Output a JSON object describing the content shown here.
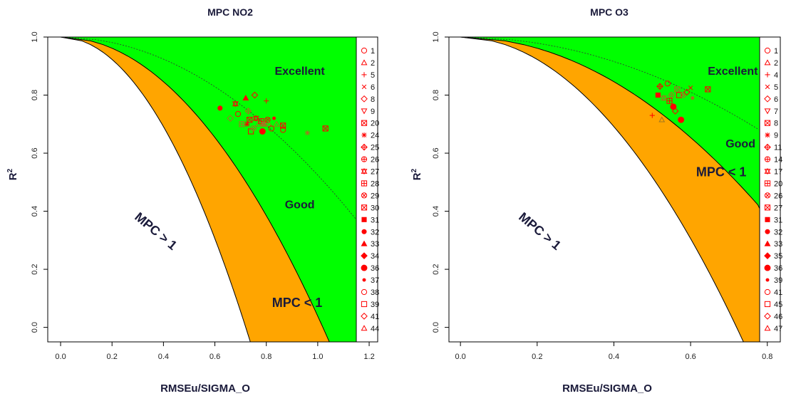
{
  "colors": {
    "good": "#00ff00",
    "mpc_lt_1": "#ffa500",
    "marker": "#ff0000",
    "marker_alt": "#a07820",
    "frame": "#000000",
    "title_text": "#1a1a3a"
  },
  "chart_data": [
    {
      "type": "scatter",
      "title": "MPC NO2",
      "xlabel": "RMSEu/SIGMA_O",
      "ylabel": "R²",
      "ylabel_base": "R",
      "ylabel_sup": "2",
      "xlim": [
        -0.05,
        1.15
      ],
      "ylim": [
        -0.05,
        1.0
      ],
      "xticks": [
        "0.0",
        "0.2",
        "0.4",
        "0.6",
        "0.8",
        "1.0",
        "1.2"
      ],
      "xtick_values": [
        0.0,
        0.2,
        0.4,
        0.6,
        0.8,
        1.0,
        1.2
      ],
      "yticks": [
        "0.0",
        "0.2",
        "0.4",
        "0.6",
        "0.8",
        "1.0"
      ],
      "ytick_values": [
        0.0,
        0.2,
        0.4,
        0.6,
        0.8,
        1.0
      ],
      "region_labels": {
        "excellent": "Excellent",
        "good": "Good",
        "mpc_lt": "MPC < 1",
        "mpc_gt": "MPC > 1"
      },
      "region_label_pos": {
        "excellent": [
          0.93,
          0.87
        ],
        "good": [
          0.93,
          0.41
        ],
        "mpc_lt": [
          0.92,
          0.07
        ],
        "mpc_gt": [
          0.36,
          0.32
        ]
      },
      "region_label_rot": {
        "mpc_gt": 40
      },
      "legend_placement": "right",
      "legend": [
        "1",
        "2",
        "5",
        "6",
        "8",
        "9",
        "20",
        "24",
        "25",
        "26",
        "27",
        "28",
        "29",
        "30",
        "31",
        "32",
        "33",
        "34",
        "36",
        "37",
        "38",
        "39",
        "41",
        "44"
      ],
      "legend_symbols": [
        "circle",
        "triangle",
        "plus",
        "cross",
        "diamond",
        "triangle-down",
        "square-x",
        "asterisk",
        "diamond-plus",
        "circle-plus",
        "star6",
        "square-plus",
        "circle-x",
        "square-x",
        "filled-square",
        "filled-circle",
        "filled-triangle",
        "filled-diamond",
        "filled-circle-big",
        "filled-circle-small",
        "circle",
        "square",
        "diamond",
        "triangle"
      ],
      "points": [
        {
          "x": 0.62,
          "y": 0.755,
          "s": "filled-circle"
        },
        {
          "x": 0.66,
          "y": 0.72,
          "s": "diamond"
        },
        {
          "x": 0.68,
          "y": 0.77,
          "s": "star6"
        },
        {
          "x": 0.69,
          "y": 0.735,
          "s": "circle"
        },
        {
          "x": 0.705,
          "y": 0.7,
          "s": "square-plus"
        },
        {
          "x": 0.72,
          "y": 0.79,
          "s": "filled-triangle"
        },
        {
          "x": 0.725,
          "y": 0.7,
          "s": "asterisk"
        },
        {
          "x": 0.73,
          "y": 0.745,
          "s": "diamond-plus"
        },
        {
          "x": 0.735,
          "y": 0.715,
          "s": "square-x"
        },
        {
          "x": 0.74,
          "y": 0.675,
          "s": "square"
        },
        {
          "x": 0.75,
          "y": 0.685,
          "s": "circle-plus"
        },
        {
          "x": 0.755,
          "y": 0.8,
          "s": "diamond"
        },
        {
          "x": 0.76,
          "y": 0.72,
          "s": "star6"
        },
        {
          "x": 0.77,
          "y": 0.7,
          "s": "triangle"
        },
        {
          "x": 0.78,
          "y": 0.71,
          "s": "square-plus"
        },
        {
          "x": 0.785,
          "y": 0.675,
          "s": "filled-circle-big"
        },
        {
          "x": 0.79,
          "y": 0.7,
          "s": "filled-square"
        },
        {
          "x": 0.8,
          "y": 0.78,
          "s": "plus"
        },
        {
          "x": 0.805,
          "y": 0.715,
          "s": "circle-x"
        },
        {
          "x": 0.81,
          "y": 0.7,
          "s": "triangle"
        },
        {
          "x": 0.82,
          "y": 0.685,
          "s": "circle"
        },
        {
          "x": 0.83,
          "y": 0.72,
          "s": "filled-circle-small"
        },
        {
          "x": 0.84,
          "y": 0.7,
          "s": "triangle"
        },
        {
          "x": 0.865,
          "y": 0.68,
          "s": "circle"
        },
        {
          "x": 0.865,
          "y": 0.695,
          "s": "square-x"
        },
        {
          "x": 0.96,
          "y": 0.67,
          "s": "asterisk"
        },
        {
          "x": 1.03,
          "y": 0.685,
          "s": "square-x"
        }
      ]
    },
    {
      "type": "scatter",
      "title": "MPC O3",
      "xlabel": "RMSEu/SIGMA_O",
      "ylabel": "R²",
      "ylabel_base": "R",
      "ylabel_sup": "2",
      "xlim": [
        -0.03,
        0.78
      ],
      "ylim": [
        -0.05,
        1.0
      ],
      "xticks": [
        "0.0",
        "0.2",
        "0.4",
        "0.6",
        "0.8"
      ],
      "xtick_values": [
        0.0,
        0.2,
        0.4,
        0.6,
        0.8
      ],
      "yticks": [
        "0.0",
        "0.2",
        "0.4",
        "0.6",
        "0.8",
        "1.0"
      ],
      "ytick_values": [
        0.0,
        0.2,
        0.4,
        0.6,
        0.8,
        1.0
      ],
      "region_labels": {
        "excellent": "Excellent",
        "good": "Good",
        "mpc_lt": "MPC < 1",
        "mpc_gt": "MPC > 1"
      },
      "region_label_pos": {
        "excellent": [
          0.71,
          0.87
        ],
        "good": [
          0.73,
          0.62
        ],
        "mpc_lt": [
          0.68,
          0.52
        ],
        "mpc_gt": [
          0.2,
          0.32
        ]
      },
      "region_label_rot": {
        "mpc_gt": 40
      },
      "legend_placement": "right",
      "legend": [
        "1",
        "2",
        "4",
        "5",
        "6",
        "7",
        "8",
        "9",
        "11",
        "14",
        "17",
        "20",
        "26",
        "27",
        "31",
        "32",
        "33",
        "35",
        "36",
        "39",
        "41",
        "45",
        "46",
        "47"
      ],
      "legend_symbols": [
        "circle",
        "triangle",
        "plus",
        "cross",
        "diamond",
        "triangle-down",
        "square-x",
        "asterisk",
        "diamond-plus",
        "circle-plus",
        "star6",
        "square-plus",
        "circle-x",
        "square-x",
        "filled-square",
        "filled-circle",
        "filled-triangle",
        "filled-diamond",
        "filled-circle-big",
        "filled-circle-small",
        "circle",
        "square",
        "diamond",
        "triangle"
      ],
      "points": [
        {
          "x": 0.5,
          "y": 0.73,
          "s": "plus"
        },
        {
          "x": 0.525,
          "y": 0.715,
          "s": "triangle"
        },
        {
          "x": 0.515,
          "y": 0.8,
          "s": "filled-square"
        },
        {
          "x": 0.52,
          "y": 0.83,
          "s": "diamond-plus"
        },
        {
          "x": 0.53,
          "y": 0.79,
          "s": "star6"
        },
        {
          "x": 0.54,
          "y": 0.84,
          "s": "circle"
        },
        {
          "x": 0.545,
          "y": 0.78,
          "s": "square-plus"
        },
        {
          "x": 0.55,
          "y": 0.8,
          "s": "circle-plus"
        },
        {
          "x": 0.555,
          "y": 0.76,
          "s": "filled-circle-big"
        },
        {
          "x": 0.56,
          "y": 0.745,
          "s": "diamond"
        },
        {
          "x": 0.565,
          "y": 0.82,
          "s": "square-x"
        },
        {
          "x": 0.57,
          "y": 0.8,
          "s": "square"
        },
        {
          "x": 0.575,
          "y": 0.715,
          "s": "filled-circle-big"
        },
        {
          "x": 0.58,
          "y": 0.8,
          "s": "circle-x"
        },
        {
          "x": 0.59,
          "y": 0.81,
          "s": "diamond"
        },
        {
          "x": 0.6,
          "y": 0.825,
          "s": "cross"
        },
        {
          "x": 0.605,
          "y": 0.79,
          "s": "filled-circle-small"
        },
        {
          "x": 0.645,
          "y": 0.82,
          "s": "square-x"
        }
      ]
    }
  ]
}
